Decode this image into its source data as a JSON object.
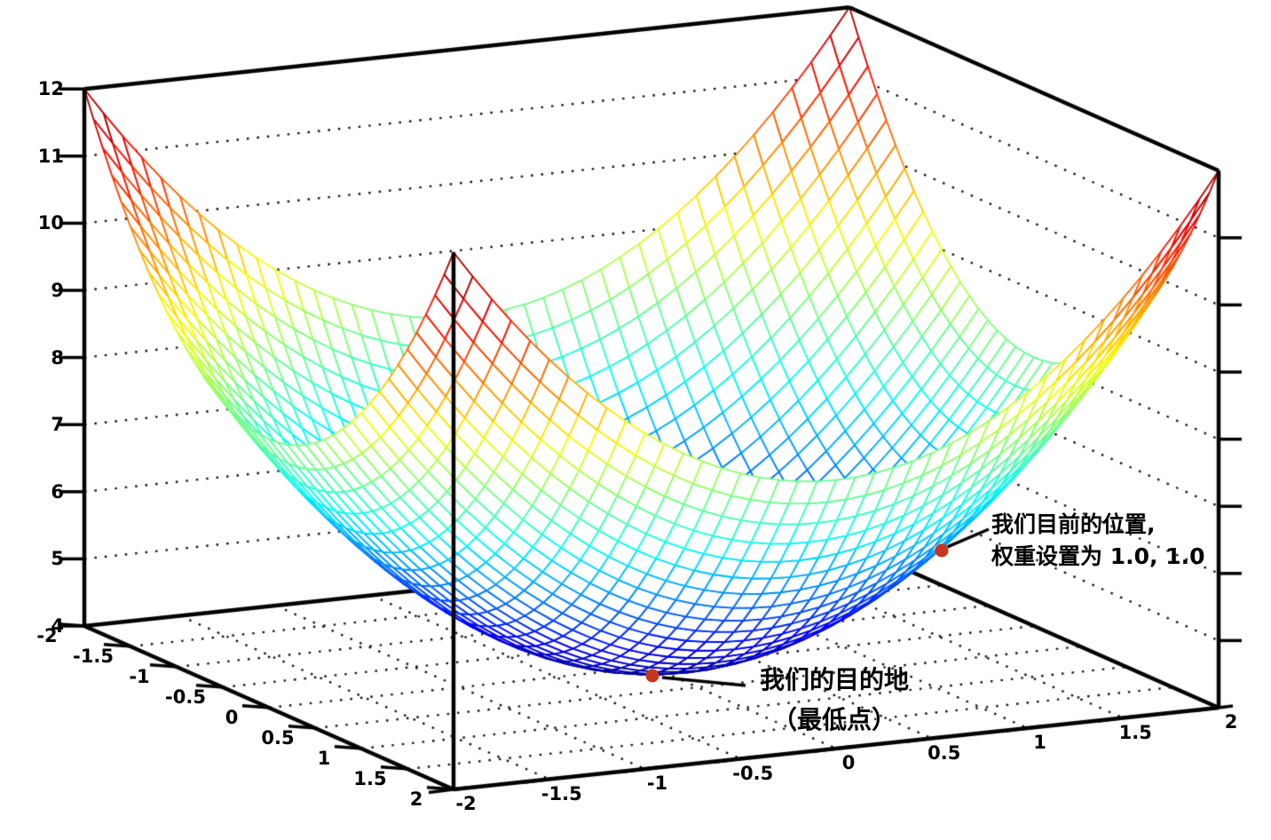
{
  "chart_data": {
    "type": "surface3d-wireframe",
    "title": "",
    "surface": {
      "function": "z = x^2 + y^2 + 4",
      "x_min": -2,
      "x_max": 2,
      "y_min": -2,
      "y_max": 2,
      "z_min": 4,
      "z_max": 12,
      "mesh_divisions": 40,
      "colormap": "jet",
      "hidden_line_removal": true
    },
    "x_ticks": [
      -2,
      -1.5,
      -1,
      -0.5,
      0,
      0.5,
      1,
      1.5,
      2
    ],
    "y_ticks": [
      -2,
      -1.5,
      -1,
      -0.5,
      0,
      0.5,
      1,
      1.5,
      2
    ],
    "z_ticks": [
      4,
      5,
      6,
      7,
      8,
      9,
      10,
      11,
      12
    ],
    "grid": "dotted wall and floor grid lines at each tick",
    "points": [
      {
        "id": "current_position",
        "x": 1,
        "y": 1,
        "z": 6,
        "color": "#c5381d"
      },
      {
        "id": "destination",
        "x": 0,
        "y": 0,
        "z": 4,
        "color": "#c5381d"
      }
    ],
    "annotations": [
      {
        "target": "current_position",
        "lines": [
          "我们目前的位置,",
          "权重设置为 1.0, 1.0"
        ]
      },
      {
        "target": "destination",
        "lines": [
          "我们的目的地",
          "（最低点）"
        ]
      }
    ],
    "colors": {
      "background": "#ffffff",
      "axis": "#000000",
      "grid_dots": "#151515",
      "marker": "#c5381d",
      "annotation_text": "#000000"
    }
  }
}
